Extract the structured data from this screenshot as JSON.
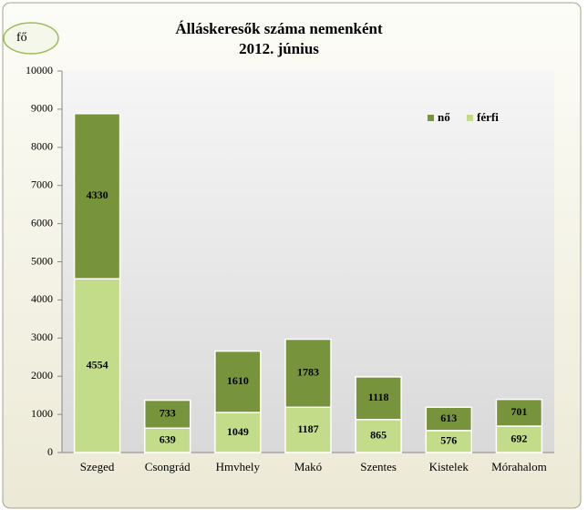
{
  "chart_data": {
    "type": "stacked_bar",
    "title": "Álláskeresők száma nemenként",
    "subtitle": "2012. június",
    "y_label": "fő",
    "categories": [
      "Szeged",
      "Csongrád",
      "Hmvhely",
      "Makó",
      "Szentes",
      "Kistelek",
      "Mórahalom"
    ],
    "series": [
      {
        "name": "férfi",
        "color": "#c3dc8a",
        "values": [
          4554,
          639,
          1049,
          1187,
          865,
          576,
          692
        ]
      },
      {
        "name": "nő",
        "color": "#77933c",
        "values": [
          4330,
          733,
          1610,
          1783,
          1118,
          613,
          701
        ]
      }
    ],
    "ylim": [
      0,
      10000
    ],
    "yticks": [
      0,
      1000,
      2000,
      3000,
      4000,
      5000,
      6000,
      7000,
      8000,
      9000,
      10000
    ],
    "grid": false,
    "legend": "top-right"
  }
}
